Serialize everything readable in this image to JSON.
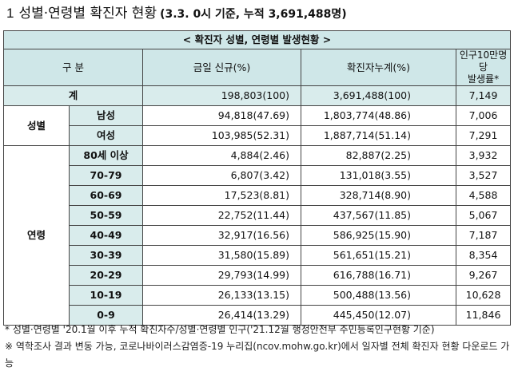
{
  "title": {
    "number": "1",
    "text": "성별·연령별 확진자 현황",
    "sub": "(3.3. 0시 기준, 누적 3,691,488명)"
  },
  "table": {
    "caption": "< 확진자 성별, 연령별 발생현황 >",
    "headers": {
      "category": "구 분",
      "new_cases": "금일 신규(%)",
      "cumulative": "확진자누계(%)",
      "rate_line1": "인구10만명당",
      "rate_line2": "발생률*"
    },
    "total": {
      "label": "계",
      "new": "198,803(100)",
      "cum": "3,691,488(100)",
      "rate": "7,149"
    },
    "sex": {
      "label": "성별",
      "rows": [
        {
          "label": "남성",
          "new": "94,818(47.69)",
          "cum": "1,803,774(48.86)",
          "rate": "7,006"
        },
        {
          "label": "여성",
          "new": "103,985(52.31)",
          "cum": "1,887,714(51.14)",
          "rate": "7,291"
        }
      ]
    },
    "age": {
      "label": "연령",
      "rows": [
        {
          "label": "80세 이상",
          "new": "4,884(2.46)",
          "cum": "82,887(2.25)",
          "rate": "3,932"
        },
        {
          "label": "70-79",
          "new": "6,807(3.42)",
          "cum": "131,018(3.55)",
          "rate": "3,527"
        },
        {
          "label": "60-69",
          "new": "17,523(8.81)",
          "cum": "328,714(8.90)",
          "rate": "4,588"
        },
        {
          "label": "50-59",
          "new": "22,752(11.44)",
          "cum": "437,567(11.85)",
          "rate": "5,067"
        },
        {
          "label": "40-49",
          "new": "32,917(16.56)",
          "cum": "586,925(15.90)",
          "rate": "7,187"
        },
        {
          "label": "30-39",
          "new": "31,580(15.89)",
          "cum": "561,651(15.21)",
          "rate": "8,354"
        },
        {
          "label": "20-29",
          "new": "29,793(14.99)",
          "cum": "616,788(16.71)",
          "rate": "9,267"
        },
        {
          "label": "10-19",
          "new": "26,133(13.15)",
          "cum": "500,488(13.56)",
          "rate": "10,628"
        },
        {
          "label": "0-9",
          "new": "26,414(13.29)",
          "cum": "445,450(12.07)",
          "rate": "11,846"
        }
      ]
    }
  },
  "notes": {
    "note1": "* 성별·연령별 '20.1월 이후 누적 확진자수/성별·연령별 인구('21.12월 행정안전부 주민등록인구현황 기준)",
    "note2": "※ 역학조사 결과 변동 가능, 코로나바이러스감염증-19 누리집(ncov.mohw.go.kr)에서 일자별 전체 확진자 현황 다운로드 가능"
  }
}
